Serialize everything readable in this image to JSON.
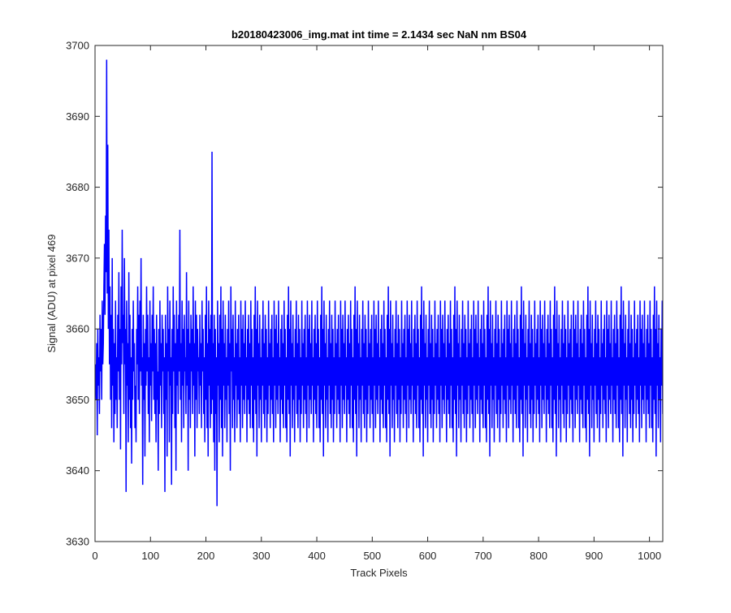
{
  "chart_data": {
    "type": "line",
    "title": "b20180423006_img.mat int time = 2.1434 sec  NaN nm BS04",
    "xlabel": "Track Pixels",
    "ylabel": "Signal (ADU) at pixel 469",
    "xlim": [
      0,
      1024
    ],
    "ylim": [
      3630,
      3700
    ],
    "xticks": [
      0,
      100,
      200,
      300,
      400,
      500,
      600,
      700,
      800,
      900,
      1000
    ],
    "yticks": [
      3630,
      3640,
      3650,
      3660,
      3670,
      3680,
      3690,
      3700
    ],
    "grid": false,
    "legend": "none",
    "series_color": "#0000ff",
    "series": [
      {
        "x_start": 1,
        "x_step": 1,
        "points_count": 1024,
        "values": [
          3655,
          3650,
          3658,
          3645,
          3660,
          3652,
          3656,
          3648,
          3662,
          3654,
          3660,
          3650,
          3664,
          3655,
          3658,
          3666,
          3672,
          3662,
          3676,
          3668,
          3698,
          3665,
          3686,
          3660,
          3674,
          3655,
          3666,
          3650,
          3662,
          3646,
          3670,
          3652,
          3660,
          3644,
          3658,
          3648,
          3664,
          3650,
          3656,
          3646,
          3662,
          3654,
          3668,
          3650,
          3660,
          3643,
          3666,
          3655,
          3674,
          3658,
          3662,
          3648,
          3670,
          3655,
          3660,
          3637,
          3664,
          3652,
          3658,
          3644,
          3668,
          3650,
          3662,
          3646,
          3656,
          3641,
          3660,
          3650,
          3664,
          3654,
          3658,
          3646,
          3652,
          3644,
          3660,
          3655,
          3666,
          3650,
          3662,
          3648,
          3664,
          3654,
          3670,
          3652,
          3656,
          3638,
          3662,
          3650,
          3658,
          3642,
          3660,
          3652,
          3666,
          3654,
          3662,
          3648,
          3656,
          3644,
          3664,
          3652,
          3658,
          3647,
          3662,
          3654,
          3666,
          3650,
          3660,
          3648,
          3658,
          3644,
          3662,
          3650,
          3654,
          3640,
          3660,
          3648,
          3664,
          3652,
          3658,
          3646,
          3662,
          3654,
          3660,
          3648,
          3656,
          3637,
          3662,
          3650,
          3658,
          3642,
          3666,
          3654,
          3660,
          3644,
          3664,
          3652,
          3656,
          3638,
          3660,
          3648,
          3666,
          3654,
          3662,
          3646,
          3658,
          3640,
          3664,
          3652,
          3660,
          3648,
          3662,
          3654,
          3674,
          3650,
          3658,
          3644,
          3664,
          3652,
          3660,
          3646,
          3662,
          3654,
          3656,
          3648,
          3668,
          3652,
          3660,
          3640,
          3664,
          3650,
          3658,
          3646,
          3662,
          3654,
          3660,
          3648,
          3666,
          3652,
          3658,
          3642,
          3664,
          3650,
          3662,
          3646,
          3660,
          3654,
          3656,
          3648,
          3662,
          3652,
          3658,
          3646,
          3664,
          3654,
          3660,
          3648,
          3656,
          3644,
          3662,
          3650,
          3666,
          3646,
          3658,
          3642,
          3664,
          3652,
          3660,
          3646,
          3662,
          3648,
          3685,
          3650,
          3658,
          3644,
          3662,
          3640,
          3660,
          3648,
          3656,
          3635,
          3664,
          3652,
          3658,
          3644,
          3662,
          3650,
          3666,
          3646,
          3660,
          3642,
          3664,
          3652,
          3658,
          3646,
          3662,
          3650,
          3656,
          3644,
          3660,
          3652,
          3664,
          3648,
          3658,
          3640,
          3666,
          3654,
          3660,
          3646,
          3662,
          3650,
          3656,
          3644,
          3664,
          3652,
          3658,
          3646,
          3660,
          3650,
          3662,
          3648,
          3656,
          3644,
          3664,
          3652,
          3660,
          3646,
          3662,
          3650,
          3658,
          3648,
          3664,
          3652,
          3656,
          3644,
          3660,
          3650,
          3662,
          3648,
          3658,
          3646,
          3664,
          3652,
          3660,
          3646,
          3656,
          3644,
          3662,
          3650,
          3666,
          3648,
          3660,
          3642,
          3664,
          3652,
          3658,
          3646,
          3662,
          3650,
          3656,
          3644,
          3660,
          3652,
          3664,
          3648,
          3658,
          3646,
          3662,
          3650,
          3660,
          3644,
          3656,
          3648,
          3664,
          3652,
          3658,
          3646,
          3660,
          3650,
          3662,
          3648,
          3656,
          3644,
          3664,
          3652,
          3660,
          3646,
          3662,
          3650,
          3658,
          3648,
          3664,
          3652,
          3656,
          3644,
          3660,
          3650,
          3662,
          3648,
          3658,
          3646,
          3664,
          3652,
          3660,
          3646,
          3656,
          3644,
          3662,
          3650,
          3666,
          3648,
          3660,
          3642,
          3664,
          3652,
          3658,
          3646,
          3662,
          3650,
          3656,
          3644,
          3660,
          3652,
          3664,
          3648,
          3658,
          3646,
          3662,
          3650,
          3660,
          3644,
          3656,
          3648,
          3664,
          3652,
          3658,
          3646,
          3660,
          3650,
          3662,
          3648,
          3656,
          3644,
          3664,
          3652,
          3660,
          3646,
          3662,
          3650,
          3658,
          3648,
          3664,
          3652,
          3656,
          3644,
          3660,
          3650,
          3662,
          3648,
          3658,
          3646,
          3664,
          3652,
          3660,
          3646,
          3656,
          3644,
          3662,
          3650,
          3666,
          3648,
          3660,
          3642,
          3664,
          3652,
          3658,
          3646,
          3662,
          3650,
          3656,
          3644,
          3660,
          3652,
          3664,
          3648,
          3658,
          3646,
          3662,
          3650,
          3660,
          3644,
          3656,
          3648,
          3664,
          3652,
          3658,
          3646,
          3660,
          3650,
          3662,
          3648,
          3656,
          3644,
          3664,
          3652,
          3660,
          3646,
          3662,
          3650,
          3658,
          3648,
          3664,
          3652,
          3656,
          3644,
          3660,
          3650,
          3662,
          3648,
          3658,
          3646,
          3664,
          3652,
          3660,
          3646,
          3656,
          3644,
          3662,
          3650,
          3666,
          3648,
          3660,
          3642,
          3664,
          3652,
          3658,
          3646,
          3662,
          3650,
          3656,
          3644,
          3660,
          3652,
          3664,
          3648,
          3658,
          3646,
          3662,
          3650,
          3660,
          3644,
          3656,
          3648,
          3664,
          3652,
          3658,
          3646,
          3660,
          3650,
          3662,
          3648,
          3656,
          3644,
          3664,
          3652,
          3660,
          3646,
          3662,
          3650,
          3658,
          3648,
          3664,
          3652,
          3656,
          3644,
          3660,
          3650,
          3662,
          3648,
          3658,
          3646,
          3664,
          3652,
          3660,
          3646,
          3656,
          3644,
          3662,
          3650,
          3666,
          3648,
          3660,
          3642,
          3664,
          3652,
          3658,
          3646,
          3662,
          3650,
          3656,
          3644,
          3660,
          3652,
          3664,
          3648,
          3658,
          3646,
          3662,
          3650,
          3660,
          3644,
          3656,
          3648,
          3664,
          3652,
          3658,
          3646,
          3660,
          3650,
          3662,
          3648,
          3656,
          3644,
          3664,
          3652,
          3660,
          3646,
          3662,
          3650,
          3658,
          3648,
          3664,
          3652,
          3656,
          3644,
          3660,
          3650,
          3662,
          3648,
          3658,
          3646,
          3664,
          3652,
          3660,
          3646,
          3656,
          3644,
          3662,
          3650,
          3666,
          3648,
          3660,
          3642,
          3664,
          3652,
          3658,
          3646,
          3662,
          3650,
          3656,
          3644,
          3660,
          3652,
          3664,
          3648,
          3658,
          3646,
          3662,
          3650,
          3660,
          3644,
          3656,
          3648,
          3664,
          3652,
          3658,
          3646,
          3660,
          3650,
          3662,
          3648,
          3656,
          3644,
          3664,
          3652,
          3660,
          3646,
          3662,
          3650,
          3658,
          3648,
          3664,
          3652,
          3656,
          3644,
          3660,
          3650,
          3662,
          3648,
          3658,
          3646,
          3664,
          3652,
          3660,
          3646,
          3656,
          3644,
          3662,
          3650,
          3666,
          3648,
          3660,
          3642,
          3664,
          3652,
          3658,
          3646,
          3662,
          3650,
          3656,
          3644,
          3660,
          3652,
          3664,
          3648,
          3658,
          3646,
          3662,
          3650,
          3660,
          3644,
          3656,
          3648,
          3664,
          3652,
          3658,
          3646,
          3660,
          3650,
          3662,
          3648,
          3656,
          3644,
          3664,
          3652,
          3660,
          3646,
          3662,
          3650,
          3658,
          3648,
          3664,
          3652,
          3656,
          3644,
          3660,
          3650,
          3662,
          3648,
          3658,
          3646,
          3664,
          3652,
          3660,
          3646,
          3656,
          3644,
          3662,
          3650,
          3666,
          3648,
          3660,
          3642,
          3664,
          3652,
          3658,
          3646,
          3662,
          3650,
          3656,
          3644,
          3660,
          3652,
          3664,
          3648,
          3658,
          3646,
          3662,
          3650,
          3660,
          3644,
          3656,
          3648,
          3664,
          3652,
          3658,
          3646,
          3660,
          3650,
          3662,
          3648,
          3656,
          3644,
          3664,
          3652,
          3660,
          3646,
          3662,
          3650,
          3658,
          3648,
          3664,
          3652,
          3656,
          3644,
          3660,
          3650,
          3662,
          3648,
          3658,
          3646,
          3664,
          3652,
          3660,
          3646,
          3656,
          3644,
          3662,
          3650,
          3666,
          3648,
          3660,
          3642,
          3664,
          3652,
          3658,
          3646,
          3662,
          3650,
          3656,
          3644,
          3660,
          3652,
          3664,
          3648,
          3658,
          3646,
          3662,
          3650,
          3660,
          3644,
          3656,
          3648,
          3664,
          3652,
          3658,
          3646,
          3660,
          3650,
          3662,
          3648,
          3656,
          3644,
          3664,
          3652,
          3660,
          3646,
          3662,
          3650,
          3658,
          3648,
          3664,
          3652,
          3656,
          3644,
          3660,
          3650,
          3662,
          3648,
          3658,
          3646,
          3664,
          3652,
          3660,
          3646,
          3656,
          3644,
          3662,
          3650,
          3666,
          3648,
          3660,
          3642,
          3664,
          3652,
          3658,
          3646,
          3662,
          3650,
          3656,
          3644,
          3660,
          3652,
          3664,
          3648,
          3658,
          3646,
          3662,
          3650,
          3660,
          3644,
          3656,
          3648,
          3664,
          3652,
          3658,
          3646,
          3660,
          3650,
          3662,
          3648,
          3656,
          3644,
          3664,
          3652,
          3660,
          3646,
          3662,
          3650,
          3658,
          3648,
          3664,
          3652,
          3656,
          3644,
          3660,
          3650,
          3662,
          3648,
          3658,
          3646,
          3664,
          3652,
          3660,
          3646,
          3656,
          3644,
          3662,
          3650,
          3666,
          3648,
          3660,
          3642,
          3664,
          3652,
          3658,
          3646,
          3662,
          3650,
          3656,
          3644,
          3660,
          3652,
          3664,
          3648,
          3658,
          3646,
          3662,
          3650,
          3660,
          3644,
          3656,
          3648,
          3664,
          3652,
          3658,
          3646,
          3660,
          3650,
          3662,
          3648,
          3656,
          3644,
          3664,
          3652,
          3660,
          3646,
          3662,
          3650,
          3658,
          3648,
          3664,
          3652,
          3656,
          3644,
          3660,
          3650,
          3662,
          3648,
          3658,
          3646,
          3664,
          3652,
          3660,
          3646,
          3656,
          3644,
          3662,
          3650,
          3666,
          3648,
          3660,
          3642,
          3664,
          3652,
          3658,
          3646,
          3662,
          3650,
          3656,
          3644,
          3660,
          3652,
          3664,
          3648,
          3658,
          3646,
          3662,
          3650,
          3660,
          3644,
          3656,
          3648,
          3664,
          3652,
          3658,
          3646,
          3660,
          3650,
          3662,
          3648,
          3656,
          3644,
          3664,
          3652,
          3660,
          3646,
          3662,
          3650,
          3658,
          3648,
          3664,
          3652,
          3656,
          3644,
          3660,
          3650,
          3662,
          3648,
          3658,
          3646,
          3664,
          3652,
          3660,
          3646,
          3656,
          3644,
          3662,
          3650,
          3666,
          3648,
          3660,
          3642,
          3664,
          3652,
          3658,
          3646,
          3662,
          3650,
          3656,
          3644,
          3660,
          3652,
          3664,
          3648,
          3658,
          3646,
          3662,
          3650,
          3660,
          3644,
          3656,
          3648,
          3664,
          3652,
          3658,
          3646,
          3660,
          3650,
          3662,
          3648,
          3656,
          3644,
          3664,
          3652,
          3660,
          3646,
          3662,
          3650,
          3658,
          3648,
          3664,
          3652,
          3656,
          3644,
          3660,
          3650,
          3662,
          3648
        ]
      }
    ]
  }
}
